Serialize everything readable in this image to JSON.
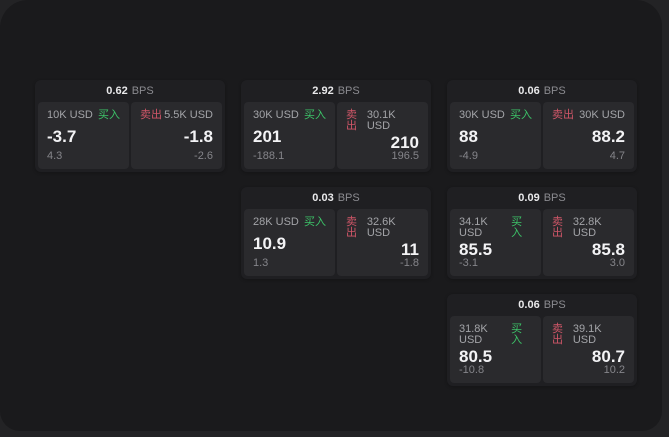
{
  "colors": {
    "backdrop": "#232325",
    "panel": "#1a1a1c",
    "card": "#1f1f22",
    "tile": "#2a2a2d",
    "buy_green": "#3cc368",
    "sell_red": "#d05668",
    "price_text": "#f3f3f5",
    "muted_text": "#85858a"
  },
  "cards": [
    {
      "spread": "0.62",
      "spread_unit": "BPS",
      "buy": {
        "amount": "10K USD",
        "side_label": "买入",
        "price": "-3.7",
        "delta": "4.3"
      },
      "sell": {
        "side_label": "卖出",
        "amount": "5.5K USD",
        "price": "-1.8",
        "delta": "-2.6"
      }
    },
    {
      "spread": "2.92",
      "spread_unit": "BPS",
      "buy": {
        "amount": "30K USD",
        "side_label": "买入",
        "price": "201",
        "delta": "-188.1"
      },
      "sell": {
        "side_label": "卖出",
        "amount": "30.1K USD",
        "price": "210",
        "delta": "196.5"
      }
    },
    {
      "spread": "0.06",
      "spread_unit": "BPS",
      "buy": {
        "amount": "30K USD",
        "side_label": "买入",
        "price": "88",
        "delta": "-4.9"
      },
      "sell": {
        "side_label": "卖出",
        "amount": "30K USD",
        "price": "88.2",
        "delta": "4.7"
      }
    },
    {
      "spread": "0.03",
      "spread_unit": "BPS",
      "buy": {
        "amount": "28K USD",
        "side_label": "买入",
        "price": "10.9",
        "delta": "1.3"
      },
      "sell": {
        "side_label": "卖出",
        "amount": "32.6K USD",
        "price": "11",
        "delta": "-1.8"
      }
    },
    {
      "spread": "0.09",
      "spread_unit": "BPS",
      "buy": {
        "amount": "34.1K USD",
        "side_label": "买入",
        "price": "85.5",
        "delta": "-3.1"
      },
      "sell": {
        "side_label": "卖出",
        "amount": "32.8K USD",
        "price": "85.8",
        "delta": "3.0"
      }
    },
    {
      "spread": "0.06",
      "spread_unit": "BPS",
      "buy": {
        "amount": "31.8K USD",
        "side_label": "买入",
        "price": "80.5",
        "delta": "-10.8"
      },
      "sell": {
        "side_label": "卖出",
        "amount": "39.1K USD",
        "price": "80.7",
        "delta": "10.2"
      }
    }
  ]
}
